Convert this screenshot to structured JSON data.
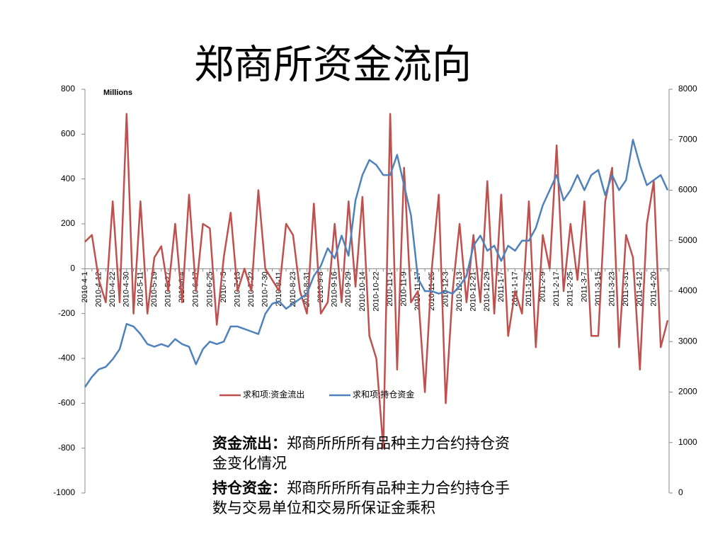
{
  "chart_data": {
    "type": "line",
    "title": "郑商所资金流向",
    "y_unit": "Millions",
    "categories": [
      "2010-4-1",
      null,
      "2010-4-12",
      null,
      "2010-4-22",
      null,
      "2010-4-30",
      null,
      "2010-5-11",
      null,
      "2010-5-19",
      null,
      "2010-5-27",
      null,
      "2010-6-4",
      null,
      "2010-6-17",
      null,
      "2010-6-25",
      null,
      "2010-7-5",
      null,
      "2010-7-13",
      null,
      "2010-7-22",
      null,
      "2010-7-30",
      null,
      "2010-8-11",
      null,
      "2010-8-23",
      null,
      "2010-8-31",
      null,
      "2010-9-8",
      null,
      "2010-9-16",
      null,
      "2010-9-29",
      null,
      "2010-10-14",
      null,
      "2010-10-22",
      null,
      "2010-11-1",
      null,
      "2010-11-9",
      null,
      "2010-11-17",
      null,
      "2010-11-25",
      null,
      "2010-12-3",
      null,
      "2010-12-13",
      null,
      "2010-12-21",
      null,
      "2010-12-29",
      null,
      "2011-1-7",
      null,
      "2011-1-17",
      null,
      "2011-1-25",
      null,
      "2011-2-9",
      null,
      "2011-2-17",
      null,
      "2011-2-25",
      null,
      "2011-3-7",
      null,
      "2011-3-15",
      null,
      "2011-3-23",
      null,
      "2011-3-31",
      null,
      "2011-4-12",
      null,
      "2011-4-20",
      null,
      null
    ],
    "series": [
      {
        "name": "求和项:资金流出",
        "color": "#c0504d",
        "axis": "y",
        "values": [
          120,
          150,
          -50,
          -150,
          300,
          -150,
          690,
          -200,
          300,
          -200,
          50,
          100,
          -100,
          200,
          -150,
          330,
          -100,
          200,
          180,
          -250,
          50,
          250,
          -100,
          0,
          -100,
          350,
          0,
          -50,
          -100,
          200,
          150,
          -100,
          -200,
          290,
          -200,
          -150,
          200,
          -150,
          300,
          -80,
          320,
          -300,
          -400,
          -800,
          690,
          -450,
          450,
          -150,
          -100,
          -550,
          0,
          330,
          -600,
          -100,
          200,
          -150,
          150,
          -150,
          390,
          -200,
          330,
          -300,
          -100,
          -200,
          300,
          -350,
          150,
          0,
          550,
          -100,
          200,
          -50,
          300,
          -300,
          -300,
          300,
          450,
          -350,
          150,
          50,
          -450,
          200,
          390,
          -350,
          -230
        ]
      },
      {
        "name": "求和项:持仓资金",
        "color": "#4f81bd",
        "axis": "y2",
        "values": [
          2100,
          2300,
          2450,
          2500,
          2650,
          2850,
          3350,
          3300,
          3150,
          2950,
          2900,
          2950,
          2900,
          3050,
          2950,
          2900,
          2550,
          2850,
          3000,
          2950,
          3000,
          3300,
          3300,
          3250,
          3200,
          3150,
          3550,
          3750,
          3800,
          3650,
          3750,
          3850,
          3950,
          4300,
          4500,
          4850,
          4650,
          5100,
          4700,
          5800,
          6300,
          6600,
          6500,
          6300,
          6300,
          6700,
          6100,
          5500,
          4250,
          4000,
          4000,
          3950,
          4000,
          3950,
          4100,
          4300,
          4900,
          5100,
          4800,
          4900,
          4600,
          4900,
          4800,
          5000,
          5000,
          5250,
          5700,
          6000,
          6300,
          5800,
          6000,
          6300,
          6000,
          6300,
          6400,
          5900,
          6300,
          6000,
          6200,
          7000,
          6500,
          6100,
          6200,
          6300,
          6000
        ]
      }
    ],
    "ylim": [
      -1000,
      800
    ],
    "yticks": [
      -1000,
      -800,
      -600,
      -400,
      -200,
      0,
      200,
      400,
      600,
      800
    ],
    "y2lim": [
      0,
      8000
    ],
    "y2ticks": [
      0,
      1000,
      2000,
      3000,
      4000,
      5000,
      6000,
      7000,
      8000
    ],
    "grid": false,
    "legend": "bottom"
  },
  "notes": [
    {
      "term": "资金流出：",
      "text": "郑商所所所有品种主力合约持仓资金变化情况"
    },
    {
      "term": "持仓资金：",
      "text": "郑商所所所有品种主力合约持仓手数与交易单位和交易所保证金乘积"
    }
  ]
}
